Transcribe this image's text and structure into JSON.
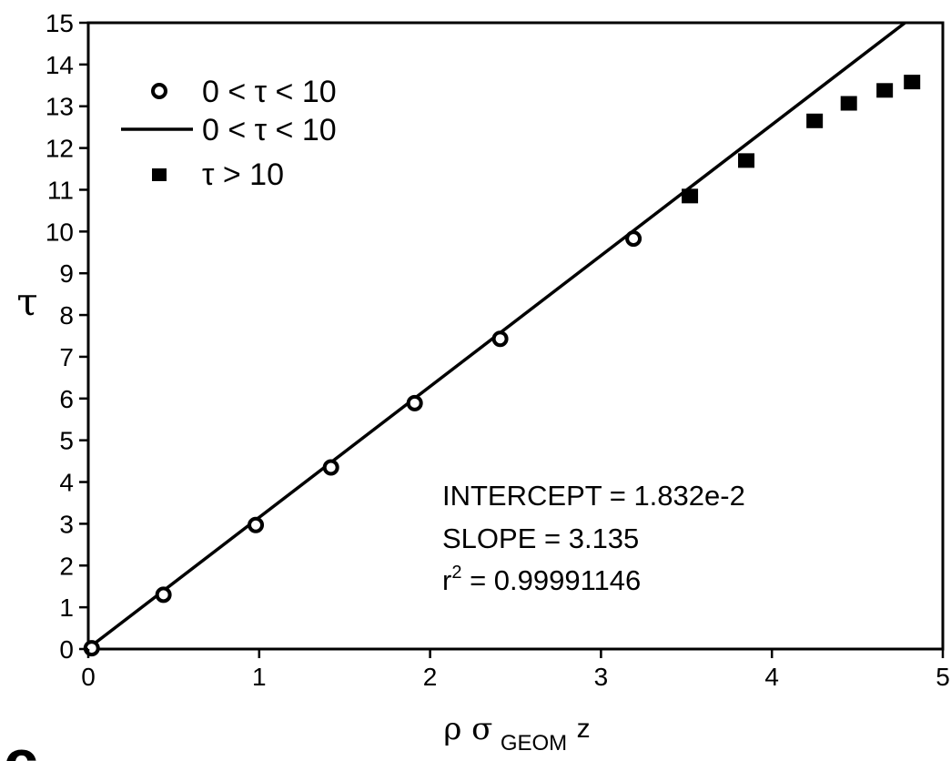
{
  "chart_data": {
    "type": "scatter",
    "title": "",
    "xlabel": {
      "main": "ρ σ",
      "subscript": "GEOM",
      "suffix": "z"
    },
    "ylabel": "τ",
    "xlim": [
      0,
      5
    ],
    "ylim": [
      0,
      15
    ],
    "x_ticks": [
      0,
      1,
      2,
      3,
      4,
      5
    ],
    "y_ticks": [
      0,
      1,
      2,
      3,
      4,
      5,
      6,
      7,
      8,
      9,
      10,
      11,
      12,
      13,
      14,
      15
    ],
    "grid": false,
    "legend": {
      "position": "top-left",
      "entries": [
        {
          "label": "0 < τ < 10",
          "marker": "open-circle"
        },
        {
          "label": "0 < τ < 10",
          "marker": "line"
        },
        {
          "label": "τ > 10",
          "marker": "filled-square"
        }
      ]
    },
    "series": [
      {
        "name": "0 < τ < 10",
        "kind": "points",
        "marker": "open-circle",
        "x": [
          0.02,
          0.44,
          0.98,
          1.42,
          1.91,
          2.41,
          3.19
        ],
        "y": [
          0.02,
          1.3,
          2.97,
          4.35,
          5.89,
          7.43,
          9.83
        ]
      },
      {
        "name": "0 < τ < 10",
        "kind": "fit-line",
        "intercept": 0.01832,
        "slope": 3.135
      },
      {
        "name": "τ > 10",
        "kind": "points",
        "marker": "filled-square",
        "x": [
          3.52,
          3.85,
          4.25,
          4.45,
          4.66,
          4.82
        ],
        "y": [
          10.85,
          11.7,
          12.65,
          13.07,
          13.38,
          13.58
        ]
      }
    ],
    "annotations": {
      "intercept": "INTERCEPT = 1.832e-2",
      "slope": "SLOPE = 3.135",
      "r2_prefix": "r",
      "r2_sup": "2",
      "r2_rest": " = 0.99991146"
    },
    "panel_label": "c"
  }
}
